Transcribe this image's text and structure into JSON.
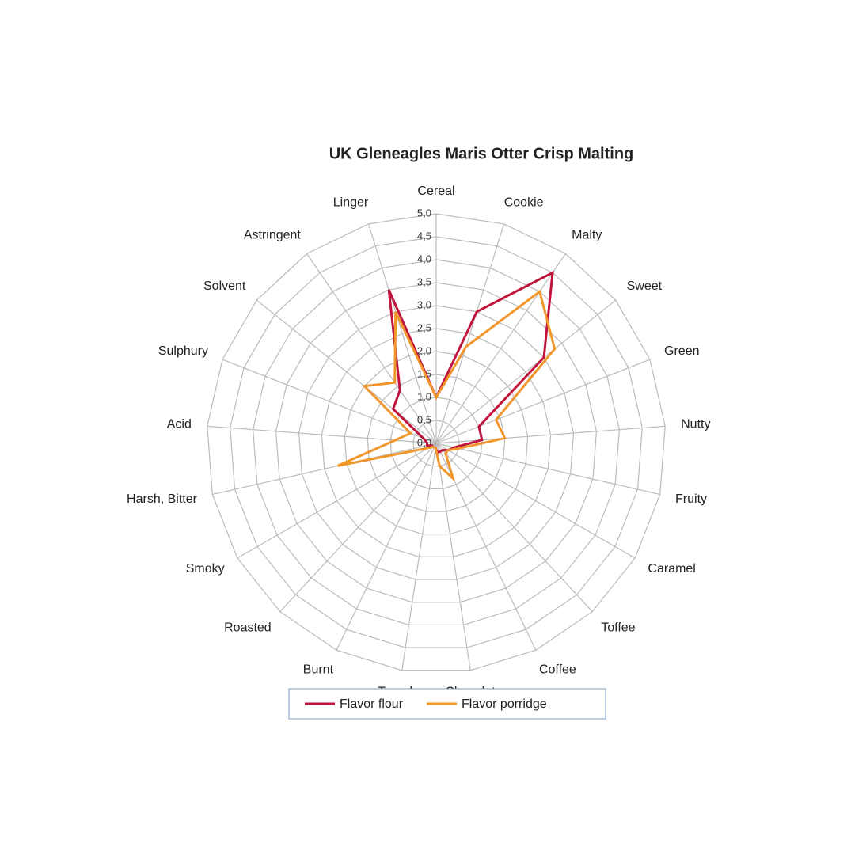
{
  "chart_data": {
    "type": "radar",
    "title": "UK Gleneagles Maris Otter Crisp Malting",
    "categories": [
      "Cereal",
      "Cookie",
      "Malty",
      "Sweet",
      "Green",
      "Nutty",
      "Fruity",
      "Caramel",
      "Toffee",
      "Coffee",
      "Chocolate",
      "Treacle",
      "Burnt",
      "Roasted",
      "Smoky",
      "Harsh, Bitter",
      "Acid",
      "Sulphury",
      "Solvent",
      "Astringent",
      "Linger"
    ],
    "series": [
      {
        "name": "Flavor flour",
        "color": "#c0143c",
        "values": [
          1.0,
          3.0,
          4.5,
          3.0,
          1.0,
          1.0,
          0.4,
          0.3,
          0.2,
          0.2,
          0.2,
          0.1,
          0.1,
          0.1,
          0.1,
          0.2,
          0.2,
          0.3,
          1.2,
          1.4,
          3.5
        ]
      },
      {
        "name": "Flavor porridge",
        "color": "#f0962a",
        "values": [
          1.0,
          2.2,
          4.0,
          3.3,
          1.4,
          1.5,
          0.5,
          0.3,
          0.3,
          0.85,
          0.5,
          0.1,
          0.1,
          0.1,
          0.2,
          2.2,
          0.9,
          0.6,
          2.0,
          1.6,
          3.0
        ]
      }
    ],
    "ylim": [
      0,
      5
    ],
    "yticks": [
      {
        "value": 0,
        "label": "0,0"
      },
      {
        "value": 0.5,
        "label": "0,5"
      },
      {
        "value": 1,
        "label": "1,0"
      },
      {
        "value": 1.5,
        "label": "1,5"
      },
      {
        "value": 2,
        "label": "2,0"
      },
      {
        "value": 2.5,
        "label": "2,5"
      },
      {
        "value": 3,
        "label": "3,0"
      },
      {
        "value": 3.5,
        "label": "3,5"
      },
      {
        "value": 4,
        "label": "4,0"
      },
      {
        "value": 4.5,
        "label": "4,5"
      },
      {
        "value": 5,
        "label": "5,0"
      }
    ],
    "grid": true,
    "legend": "bottom"
  }
}
